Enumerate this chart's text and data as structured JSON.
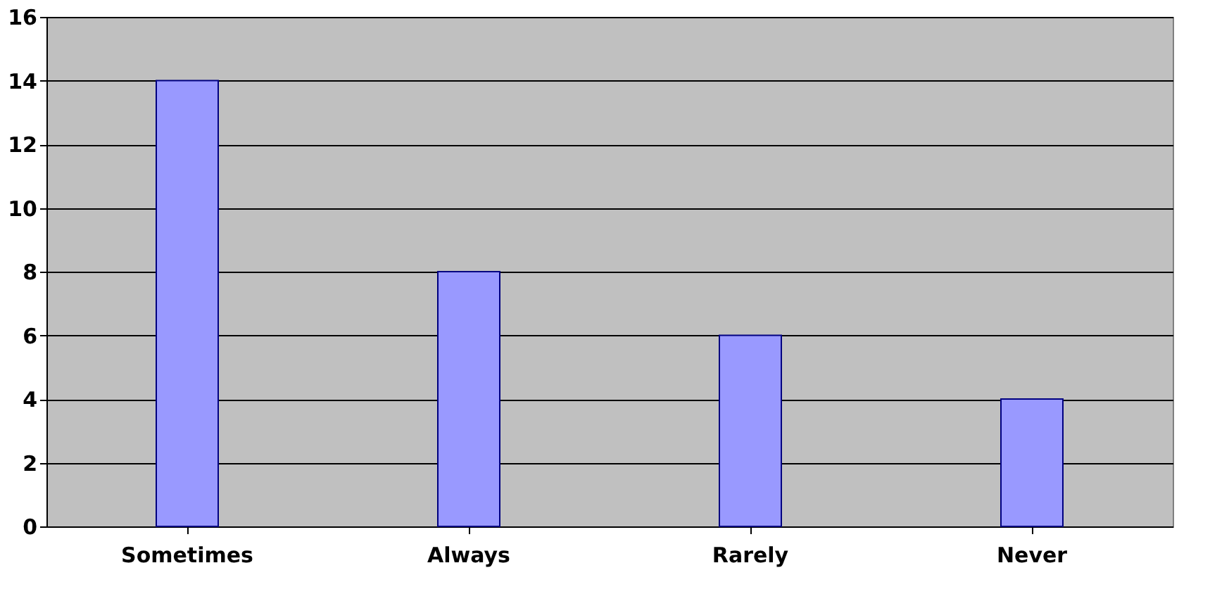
{
  "chart_data": {
    "type": "bar",
    "categories": [
      "Sometimes",
      "Always",
      "Rarely",
      "Never"
    ],
    "values": [
      14,
      8,
      6,
      4
    ],
    "color": "#9999ff",
    "ylim": [
      0,
      16
    ],
    "yticks": [
      0,
      2,
      4,
      6,
      8,
      10,
      12,
      14,
      16
    ],
    "grid": "y"
  }
}
